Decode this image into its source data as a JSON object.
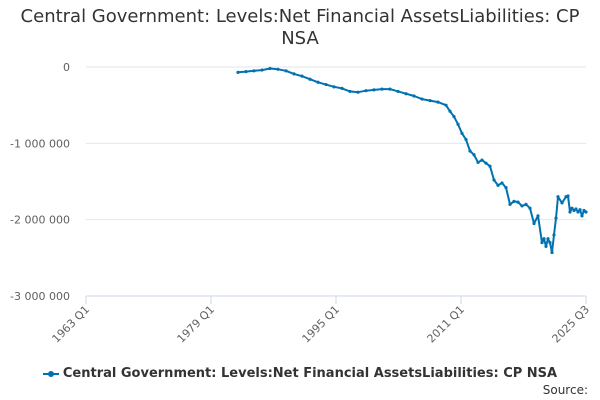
{
  "chart_data": {
    "type": "line",
    "title": "Central Government: Levels:Net Financial AssetsLiabilities: CP NSA",
    "xlabel": "",
    "ylabel": "",
    "x_ticks": [
      "1963 Q1",
      "1979 Q1",
      "1995 Q1",
      "2011 Q1",
      "2025 Q3"
    ],
    "y_ticks": [
      {
        "value": 0,
        "label": "0"
      },
      {
        "value": -1000000,
        "label": "-1 000 000"
      },
      {
        "value": -2000000,
        "label": "-2 000 000"
      },
      {
        "value": -3000000,
        "label": "-3 000 000"
      }
    ],
    "ylim": [
      -3000000,
      0
    ],
    "xlim": [
      1963.0,
      2025.5
    ],
    "series": [
      {
        "name": "Central Government: Levels:Net Financial AssetsLiabilities: CP NSA",
        "color": "#0072b2",
        "x": [
          1982.0,
          1983.0,
          1984.0,
          1985.0,
          1986.0,
          1987.0,
          1988.0,
          1989.0,
          1990.0,
          1991.0,
          1992.0,
          1993.0,
          1994.0,
          1995.0,
          1996.0,
          1997.0,
          1998.0,
          1999.0,
          2000.0,
          2001.0,
          2002.0,
          2003.0,
          2004.0,
          2005.0,
          2006.0,
          2007.0,
          2008.0,
          2008.5,
          2009.0,
          2009.5,
          2010.0,
          2010.5,
          2011.0,
          2011.5,
          2012.0,
          2012.5,
          2013.0,
          2013.5,
          2014.0,
          2014.5,
          2015.0,
          2015.5,
          2016.0,
          2016.5,
          2017.0,
          2017.5,
          2018.0,
          2018.5,
          2019.0,
          2019.5,
          2020.0,
          2020.25,
          2020.5,
          2020.75,
          2021.0,
          2021.25,
          2021.5,
          2021.75,
          2022.0,
          2022.5,
          2023.0,
          2023.25,
          2023.5,
          2023.75,
          2024.0,
          2024.25,
          2024.5,
          2024.75,
          2025.0,
          2025.25,
          2025.5
        ],
        "values": [
          -70000,
          -60000,
          -50000,
          -40000,
          -20000,
          -30000,
          -50000,
          -90000,
          -120000,
          -160000,
          -200000,
          -230000,
          -260000,
          -280000,
          -320000,
          -330000,
          -310000,
          -300000,
          -290000,
          -290000,
          -320000,
          -350000,
          -380000,
          -420000,
          -440000,
          -460000,
          -500000,
          -580000,
          -650000,
          -750000,
          -870000,
          -950000,
          -1100000,
          -1150000,
          -1250000,
          -1220000,
          -1260000,
          -1300000,
          -1480000,
          -1550000,
          -1520000,
          -1580000,
          -1800000,
          -1760000,
          -1770000,
          -1820000,
          -1800000,
          -1850000,
          -2050000,
          -1950000,
          -2300000,
          -2250000,
          -2350000,
          -2250000,
          -2300000,
          -2430000,
          -2200000,
          -1980000,
          -1700000,
          -1780000,
          -1700000,
          -1690000,
          -1900000,
          -1850000,
          -1880000,
          -1860000,
          -1900000,
          -1870000,
          -1950000,
          -1880000,
          -1900000
        ]
      }
    ]
  },
  "legend": {
    "label": "Central Government: Levels:Net Financial AssetsLiabilities: CP NSA"
  },
  "source_label": "Source:"
}
